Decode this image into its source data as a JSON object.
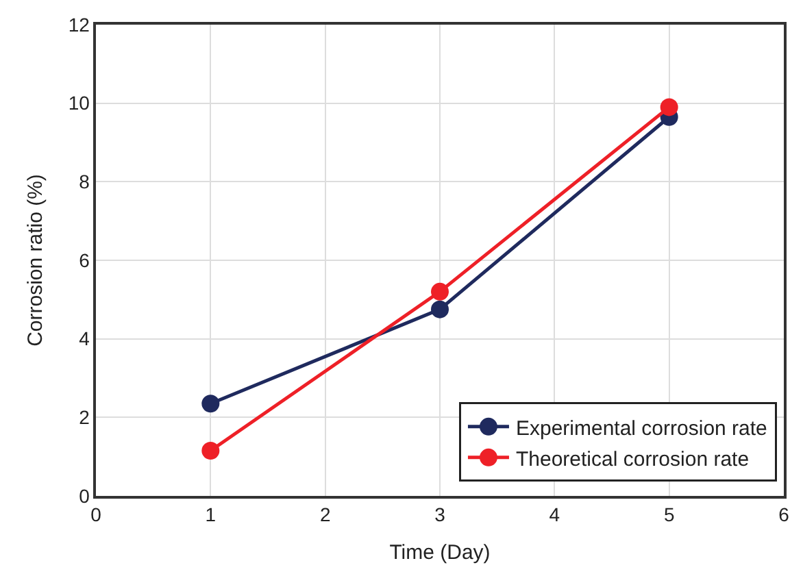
{
  "chart_data": {
    "type": "line",
    "xlabel": "Time (Day)",
    "ylabel": "Corrosion ratio (%)",
    "x": [
      1,
      3,
      5
    ],
    "series": [
      {
        "name": "Experimental corrosion rate",
        "color": "#1f2a5e",
        "values": [
          2.35,
          4.75,
          9.65
        ]
      },
      {
        "name": "Theoretical corrosion rate",
        "color": "#ee2027",
        "values": [
          1.15,
          5.2,
          9.9
        ]
      }
    ],
    "xlim": [
      0,
      6
    ],
    "xticks": [
      0,
      1,
      2,
      3,
      4,
      5,
      6
    ],
    "ylim": [
      0,
      12
    ],
    "yticks": [
      0,
      2,
      4,
      6,
      8,
      10,
      12
    ],
    "grid": true,
    "legend": "bottom right",
    "marker": "circle",
    "line_style": "solid"
  }
}
